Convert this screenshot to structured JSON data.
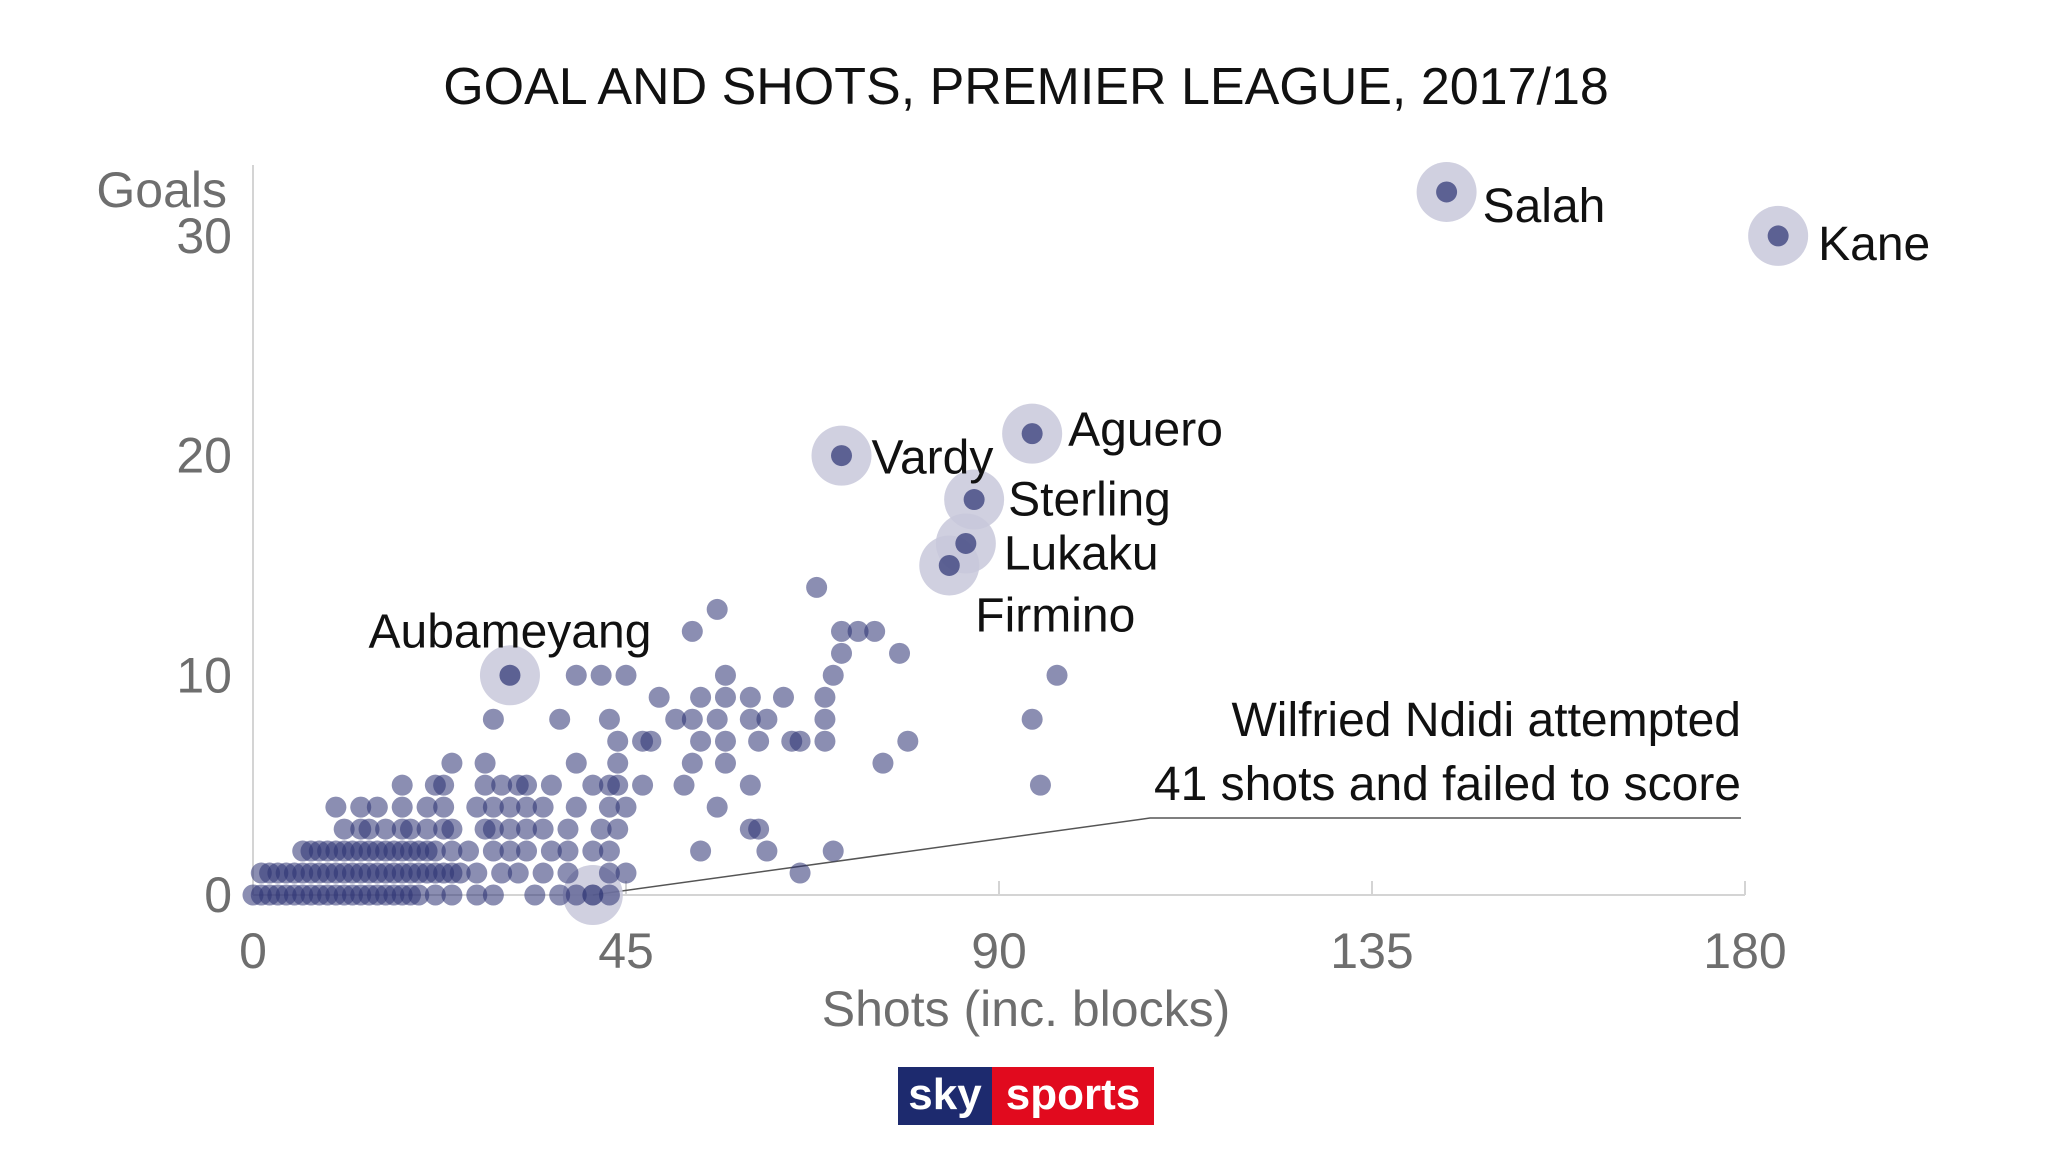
{
  "chart_data": {
    "type": "scatter",
    "title": "GOAL AND SHOTS, PREMIER LEAGUE, 2017/18",
    "xlabel": "Shots (inc. blocks)",
    "ylabel": "Goals",
    "xlim": [
      0,
      180
    ],
    "ylim": [
      0,
      33
    ],
    "xticks": [
      0,
      45,
      90,
      135,
      180
    ],
    "yticks": [
      0,
      10,
      20,
      30
    ],
    "grid": false,
    "colors": {
      "point": "#2b3272",
      "highlight_ring": "#c8c8da",
      "axis": "#cfcfcf"
    },
    "highlighted": [
      {
        "name": "Salah",
        "x": 144,
        "y": 32
      },
      {
        "name": "Kane",
        "x": 184,
        "y": 30
      },
      {
        "name": "Aguero",
        "x": 94,
        "y": 21
      },
      {
        "name": "Vardy",
        "x": 71,
        "y": 20
      },
      {
        "name": "Sterling",
        "x": 87,
        "y": 18
      },
      {
        "name": "Lukaku",
        "x": 86,
        "y": 16
      },
      {
        "name": "Firmino",
        "x": 84,
        "y": 15
      },
      {
        "name": "Aubameyang",
        "x": 31,
        "y": 10
      },
      {
        "name": "",
        "x": 41,
        "y": 0
      }
    ],
    "points": [
      [
        0,
        0
      ],
      [
        1,
        0
      ],
      [
        2,
        0
      ],
      [
        3,
        0
      ],
      [
        4,
        0
      ],
      [
        5,
        0
      ],
      [
        6,
        0
      ],
      [
        7,
        0
      ],
      [
        8,
        0
      ],
      [
        9,
        0
      ],
      [
        10,
        0
      ],
      [
        11,
        0
      ],
      [
        12,
        0
      ],
      [
        13,
        0
      ],
      [
        14,
        0
      ],
      [
        15,
        0
      ],
      [
        16,
        0
      ],
      [
        17,
        0
      ],
      [
        18,
        0
      ],
      [
        19,
        0
      ],
      [
        20,
        0
      ],
      [
        22,
        0
      ],
      [
        24,
        0
      ],
      [
        27,
        0
      ],
      [
        29,
        0
      ],
      [
        34,
        0
      ],
      [
        37,
        0
      ],
      [
        39,
        0
      ],
      [
        43,
        0
      ],
      [
        1,
        1
      ],
      [
        2,
        1
      ],
      [
        3,
        1
      ],
      [
        4,
        1
      ],
      [
        5,
        1
      ],
      [
        6,
        1
      ],
      [
        7,
        1
      ],
      [
        8,
        1
      ],
      [
        9,
        1
      ],
      [
        10,
        1
      ],
      [
        11,
        1
      ],
      [
        12,
        1
      ],
      [
        13,
        1
      ],
      [
        14,
        1
      ],
      [
        15,
        1
      ],
      [
        16,
        1
      ],
      [
        17,
        1
      ],
      [
        18,
        1
      ],
      [
        19,
        1
      ],
      [
        20,
        1
      ],
      [
        21,
        1
      ],
      [
        22,
        1
      ],
      [
        23,
        1
      ],
      [
        24,
        1
      ],
      [
        25,
        1
      ],
      [
        27,
        1
      ],
      [
        30,
        1
      ],
      [
        32,
        1
      ],
      [
        35,
        1
      ],
      [
        38,
        1
      ],
      [
        43,
        1
      ],
      [
        45,
        1
      ],
      [
        66,
        1
      ],
      [
        6,
        2
      ],
      [
        7,
        2
      ],
      [
        8,
        2
      ],
      [
        9,
        2
      ],
      [
        10,
        2
      ],
      [
        11,
        2
      ],
      [
        12,
        2
      ],
      [
        13,
        2
      ],
      [
        14,
        2
      ],
      [
        15,
        2
      ],
      [
        16,
        2
      ],
      [
        17,
        2
      ],
      [
        18,
        2
      ],
      [
        19,
        2
      ],
      [
        20,
        2
      ],
      [
        21,
        2
      ],
      [
        22,
        2
      ],
      [
        24,
        2
      ],
      [
        26,
        2
      ],
      [
        29,
        2
      ],
      [
        31,
        2
      ],
      [
        33,
        2
      ],
      [
        36,
        2
      ],
      [
        38,
        2
      ],
      [
        41,
        2
      ],
      [
        43,
        2
      ],
      [
        54,
        2
      ],
      [
        62,
        2
      ],
      [
        70,
        2
      ],
      [
        11,
        3
      ],
      [
        13,
        3
      ],
      [
        14,
        3
      ],
      [
        16,
        3
      ],
      [
        18,
        3
      ],
      [
        19,
        3
      ],
      [
        21,
        3
      ],
      [
        23,
        3
      ],
      [
        24,
        3
      ],
      [
        28,
        3
      ],
      [
        29,
        3
      ],
      [
        31,
        3
      ],
      [
        33,
        3
      ],
      [
        35,
        3
      ],
      [
        38,
        3
      ],
      [
        42,
        3
      ],
      [
        44,
        3
      ],
      [
        60,
        3
      ],
      [
        61,
        3
      ],
      [
        10,
        4
      ],
      [
        13,
        4
      ],
      [
        15,
        4
      ],
      [
        18,
        4
      ],
      [
        21,
        4
      ],
      [
        23,
        4
      ],
      [
        27,
        4
      ],
      [
        29,
        4
      ],
      [
        31,
        4
      ],
      [
        33,
        4
      ],
      [
        35,
        4
      ],
      [
        39,
        4
      ],
      [
        43,
        4
      ],
      [
        45,
        4
      ],
      [
        56,
        4
      ],
      [
        18,
        5
      ],
      [
        22,
        5
      ],
      [
        23,
        5
      ],
      [
        28,
        5
      ],
      [
        30,
        5
      ],
      [
        32,
        5
      ],
      [
        33,
        5
      ],
      [
        36,
        5
      ],
      [
        41,
        5
      ],
      [
        43,
        5
      ],
      [
        44,
        5
      ],
      [
        47,
        5
      ],
      [
        52,
        5
      ],
      [
        60,
        5
      ],
      [
        95,
        5
      ],
      [
        24,
        6
      ],
      [
        28,
        6
      ],
      [
        39,
        6
      ],
      [
        44,
        6
      ],
      [
        53,
        6
      ],
      [
        57,
        6
      ],
      [
        76,
        6
      ],
      [
        44,
        7
      ],
      [
        47,
        7
      ],
      [
        48,
        7
      ],
      [
        54,
        7
      ],
      [
        57,
        7
      ],
      [
        61,
        7
      ],
      [
        65,
        7
      ],
      [
        66,
        7
      ],
      [
        69,
        7
      ],
      [
        79,
        7
      ],
      [
        29,
        8
      ],
      [
        37,
        8
      ],
      [
        43,
        8
      ],
      [
        51,
        8
      ],
      [
        53,
        8
      ],
      [
        56,
        8
      ],
      [
        60,
        8
      ],
      [
        62,
        8
      ],
      [
        69,
        8
      ],
      [
        94,
        8
      ],
      [
        49,
        9
      ],
      [
        54,
        9
      ],
      [
        57,
        9
      ],
      [
        60,
        9
      ],
      [
        64,
        9
      ],
      [
        69,
        9
      ],
      [
        39,
        10
      ],
      [
        42,
        10
      ],
      [
        45,
        10
      ],
      [
        57,
        10
      ],
      [
        70,
        10
      ],
      [
        97,
        10
      ],
      [
        71,
        11
      ],
      [
        78,
        11
      ],
      [
        53,
        12
      ],
      [
        71,
        12
      ],
      [
        73,
        12
      ],
      [
        75,
        12
      ],
      [
        56,
        13
      ],
      [
        68,
        14
      ]
    ],
    "annotation": {
      "text_line1": "Wilfried Ndidi attempted",
      "text_line2": "41 shots and failed to score",
      "x": 41,
      "y": 0
    }
  },
  "logo": {
    "part1": "sky",
    "part2": "sports"
  }
}
